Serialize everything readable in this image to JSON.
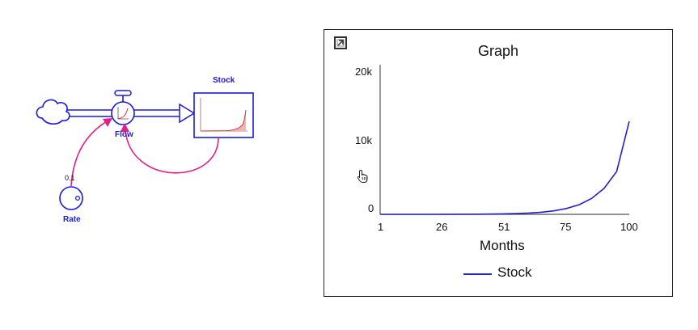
{
  "diagram": {
    "stock": {
      "label": "Stock"
    },
    "flow": {
      "label": "Flow"
    },
    "converter": {
      "label": "Rate",
      "value": "0.1"
    },
    "colors": {
      "element": "#1a1adb",
      "connector": "#e0208a",
      "sparkline": "#d43030",
      "sparkfill": "#f6b3b3"
    },
    "icons": {
      "source": "cloud-icon",
      "valve": "valve-icon",
      "converter": "converter-circle-icon"
    }
  },
  "graph": {
    "title": "Graph",
    "expand_icon": "expand-corner-icon",
    "cursor_icon": "hand-cursor-icon"
  },
  "chart_data": {
    "type": "line",
    "title": "Graph",
    "xlabel": "Months",
    "ylabel": "",
    "xlim": [
      1,
      100
    ],
    "ylim": [
      0,
      20000
    ],
    "xticks": [
      "1",
      "26",
      "51",
      "75",
      "100"
    ],
    "yticks": [
      "0",
      "10k",
      "20k"
    ],
    "grid": false,
    "legend": "bottom-center",
    "series": [
      {
        "name": "Stock",
        "color": "#2222cc",
        "x": [
          1,
          10,
          20,
          30,
          40,
          50,
          55,
          60,
          65,
          70,
          75,
          80,
          85,
          90,
          95,
          100
        ],
        "values": [
          0,
          1,
          3,
          9,
          24,
          66,
          109,
          180,
          297,
          490,
          808,
          1333,
          2198,
          3623,
          5975,
          13000
        ]
      }
    ]
  }
}
